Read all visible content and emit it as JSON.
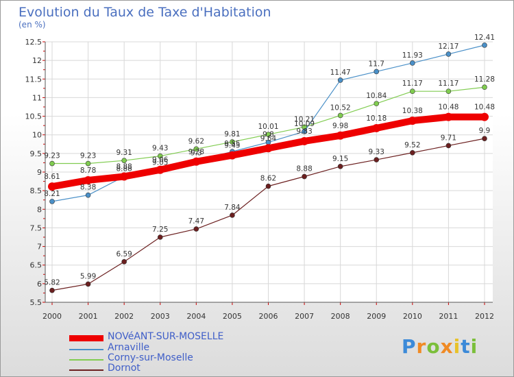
{
  "title": "Evolution du Taux de Taxe d'Habitation",
  "unit": "(en %)",
  "logo": {
    "letters": [
      "P",
      "r",
      "o",
      "x",
      "i",
      "t",
      "i"
    ]
  },
  "chart_data": {
    "type": "line",
    "x": [
      "2000",
      "2001",
      "2002",
      "2003",
      "2004",
      "2005",
      "2006",
      "2007",
      "2008",
      "2009",
      "2010",
      "2011",
      "2012"
    ],
    "ylim": [
      5.5,
      12.5
    ],
    "yticks": [
      "5.5",
      "6",
      "6.5",
      "7",
      "7.5",
      "8",
      "8.5",
      "9",
      "9.5",
      "10",
      "10.5",
      "11",
      "11.5",
      "12",
      "12.5"
    ],
    "grid": true,
    "series": [
      {
        "name": "NOVéANT-SUR-MOSELLE",
        "color": "#ee0000",
        "width": 10,
        "marker": 6,
        "values": [
          8.61,
          8.78,
          8.88,
          9.06,
          9.28,
          9.45,
          9.64,
          9.83,
          9.98,
          10.18,
          10.38,
          10.48,
          10.48
        ],
        "labels": [
          "8.61",
          "8.78",
          "8.88",
          "9.06",
          "9.28",
          "9.45",
          "9.64",
          "9.83",
          "9.98",
          "10.18",
          "10.38",
          "10.48",
          "10.48"
        ]
      },
      {
        "name": "Arnaville",
        "color": "#4a90c8",
        "width": 1.2,
        "marker": 3.5,
        "values": [
          8.21,
          8.38,
          8.88,
          9.05,
          9.3,
          9.55,
          9.8,
          10.09,
          11.47,
          11.7,
          11.93,
          12.17,
          12.41
        ],
        "labels": [
          "8.21",
          "8.38",
          "8.88",
          "9.05",
          "9.3",
          "9.55",
          "9.8",
          "10.09",
          "11.47",
          "11.7",
          "11.93",
          "12.17",
          "12.41"
        ]
      },
      {
        "name": "Corny-sur-Moselle",
        "color": "#80cc50",
        "width": 1.2,
        "marker": 3.5,
        "values": [
          9.23,
          9.23,
          9.31,
          9.43,
          9.62,
          9.81,
          10.01,
          10.21,
          10.52,
          10.84,
          11.17,
          11.17,
          11.28
        ],
        "labels": [
          "9.23",
          "9.23",
          "9.31",
          "9.43",
          "9.62",
          "9.81",
          "10.01",
          "10.21",
          "10.52",
          "10.84",
          "11.17",
          "11.17",
          "11.28"
        ]
      },
      {
        "name": "Dornot",
        "color": "#6b1f1f",
        "width": 1.2,
        "marker": 3.5,
        "values": [
          5.82,
          5.99,
          6.59,
          7.25,
          7.47,
          7.84,
          8.62,
          8.88,
          9.15,
          9.33,
          9.52,
          9.71,
          9.9
        ],
        "labels": [
          "5.82",
          "5.99",
          "6.59",
          "7.25",
          "7.47",
          "7.84",
          "8.62",
          "8.88",
          "9.15",
          "9.33",
          "9.52",
          "9.71",
          "9.9"
        ]
      }
    ]
  }
}
